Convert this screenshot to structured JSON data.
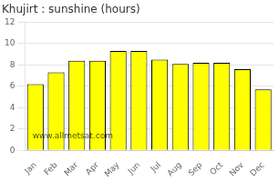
{
  "chart_data": {
    "type": "bar",
    "title": "Khujirt : sunshine (hours)",
    "categories": [
      "Jan",
      "Feb",
      "Mar",
      "Apr",
      "May",
      "Jun",
      "Jul",
      "Aug",
      "Sep",
      "Oct",
      "Nov",
      "Dec"
    ],
    "values": [
      6.2,
      7.3,
      8.4,
      8.4,
      9.3,
      9.3,
      8.5,
      8.1,
      8.2,
      8.2,
      7.6,
      5.7
    ],
    "color": "#FFFF00",
    "ylim": [
      0,
      12
    ],
    "yticks": [
      0,
      2,
      4,
      6,
      8,
      10,
      12
    ],
    "grid": true,
    "annotations": [
      "www.allmetsat.com"
    ]
  }
}
